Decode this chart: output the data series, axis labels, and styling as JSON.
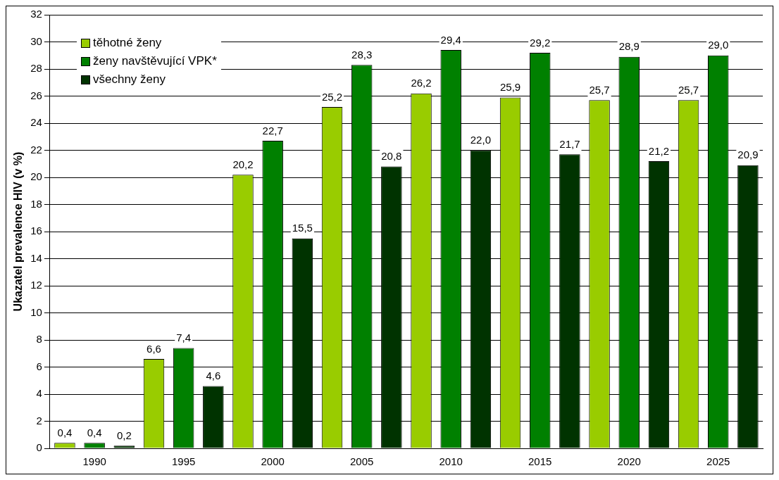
{
  "chart_data": {
    "type": "bar",
    "ylabel": "Ukazatel prevalence HIV (v %)",
    "categories": [
      "1990",
      "1995",
      "2000",
      "2005",
      "2010",
      "2015",
      "2020",
      "2025"
    ],
    "series": [
      {
        "name": "těhotné ženy",
        "color": "#99cc00",
        "values": [
          0.4,
          6.6,
          20.2,
          25.2,
          26.2,
          25.9,
          25.7,
          25.7
        ],
        "value_labels": [
          "0,4",
          "6,6",
          "20,2",
          "25,2",
          "26,2",
          "25,9",
          "25,7",
          "25,7"
        ]
      },
      {
        "name": "ženy navštěvující VPK*",
        "color": "#008000",
        "values": [
          0.4,
          7.4,
          22.7,
          28.3,
          29.4,
          29.2,
          28.9,
          29.0
        ],
        "value_labels": [
          "0,4",
          "7,4",
          "22,7",
          "28,3",
          "29,4",
          "29,2",
          "28,9",
          "29,0"
        ]
      },
      {
        "name": "všechny ženy",
        "color": "#003300",
        "values": [
          0.2,
          4.6,
          15.5,
          20.8,
          22.0,
          21.7,
          21.2,
          20.9
        ],
        "value_labels": [
          "0,2",
          "4,6",
          "15,5",
          "20,8",
          "22,0",
          "21,7",
          "21,2",
          "20,9"
        ]
      }
    ],
    "ylim": [
      0,
      32
    ],
    "yticks": [
      0,
      2,
      4,
      6,
      8,
      10,
      12,
      14,
      16,
      18,
      20,
      22,
      24,
      26,
      28,
      30,
      32
    ],
    "grid": "y",
    "legend": "top left"
  }
}
